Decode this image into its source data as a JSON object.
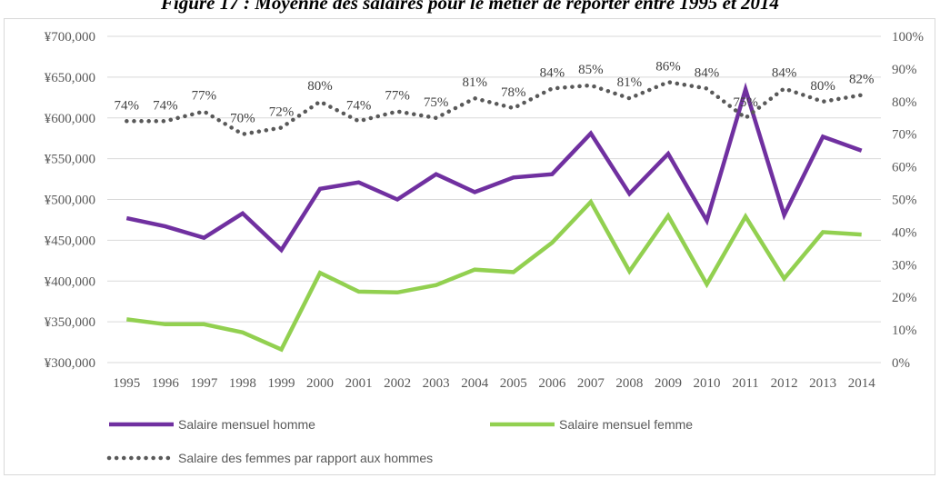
{
  "figure_title": "Figure 17 : Moyenne des salaires pour le métier de reporter entre 1995 et 2014",
  "colors": {
    "men": "#7030a0",
    "women": "#92d050",
    "ratio": "#595959",
    "grid": "#d9d9d9",
    "text": "#595959"
  },
  "chart_data": {
    "type": "line",
    "title": "Figure 17 : Moyenne des salaires pour le métier de reporter entre 1995 et 2014",
    "categories": [
      "1995",
      "1996",
      "1997",
      "1998",
      "1999",
      "2000",
      "2001",
      "2002",
      "2003",
      "2004",
      "2005",
      "2006",
      "2007",
      "2008",
      "2009",
      "2010",
      "2011",
      "2012",
      "2013",
      "2014"
    ],
    "y_left": {
      "min": 300000,
      "max": 700000,
      "step": 50000,
      "tick_labels": [
        "¥300,000",
        "¥350,000",
        "¥400,000",
        "¥450,000",
        "¥500,000",
        "¥550,000",
        "¥600,000",
        "¥650,000",
        "¥700,000"
      ]
    },
    "y_right": {
      "min": 0,
      "max": 100,
      "step": 10,
      "tick_labels": [
        "0%",
        "10%",
        "20%",
        "30%",
        "40%",
        "50%",
        "60%",
        "70%",
        "80%",
        "90%",
        "100%"
      ]
    },
    "grid": true,
    "legend_position": "bottom",
    "series": [
      {
        "name": "Salaire mensuel homme",
        "axis": "left",
        "style": "solid",
        "values": [
          477000,
          467000,
          453000,
          483000,
          438000,
          513000,
          521000,
          500000,
          531000,
          509000,
          527000,
          531000,
          581000,
          507000,
          556000,
          474000,
          635000,
          481000,
          577000,
          560000
        ]
      },
      {
        "name": "Salaire mensuel femme",
        "axis": "left",
        "style": "solid",
        "values": [
          353000,
          347000,
          347000,
          337000,
          316000,
          410000,
          387000,
          386000,
          395000,
          414000,
          411000,
          447000,
          497000,
          412000,
          480000,
          396000,
          479000,
          403000,
          460000,
          457000
        ]
      },
      {
        "name": "Salaire des femmes par rapport aux hommes",
        "axis": "right",
        "style": "dotted",
        "values": [
          74,
          74,
          77,
          70,
          72,
          80,
          74,
          77,
          75,
          81,
          78,
          84,
          85,
          81,
          86,
          84,
          75,
          84,
          80,
          82
        ],
        "data_labels": [
          "74%",
          "74%",
          "77%",
          "70%",
          "72%",
          "80%",
          "74%",
          "77%",
          "75%",
          "81%",
          "78%",
          "84%",
          "85%",
          "81%",
          "86%",
          "84%",
          "75%",
          "84%",
          "80%",
          "82%"
        ]
      }
    ]
  }
}
